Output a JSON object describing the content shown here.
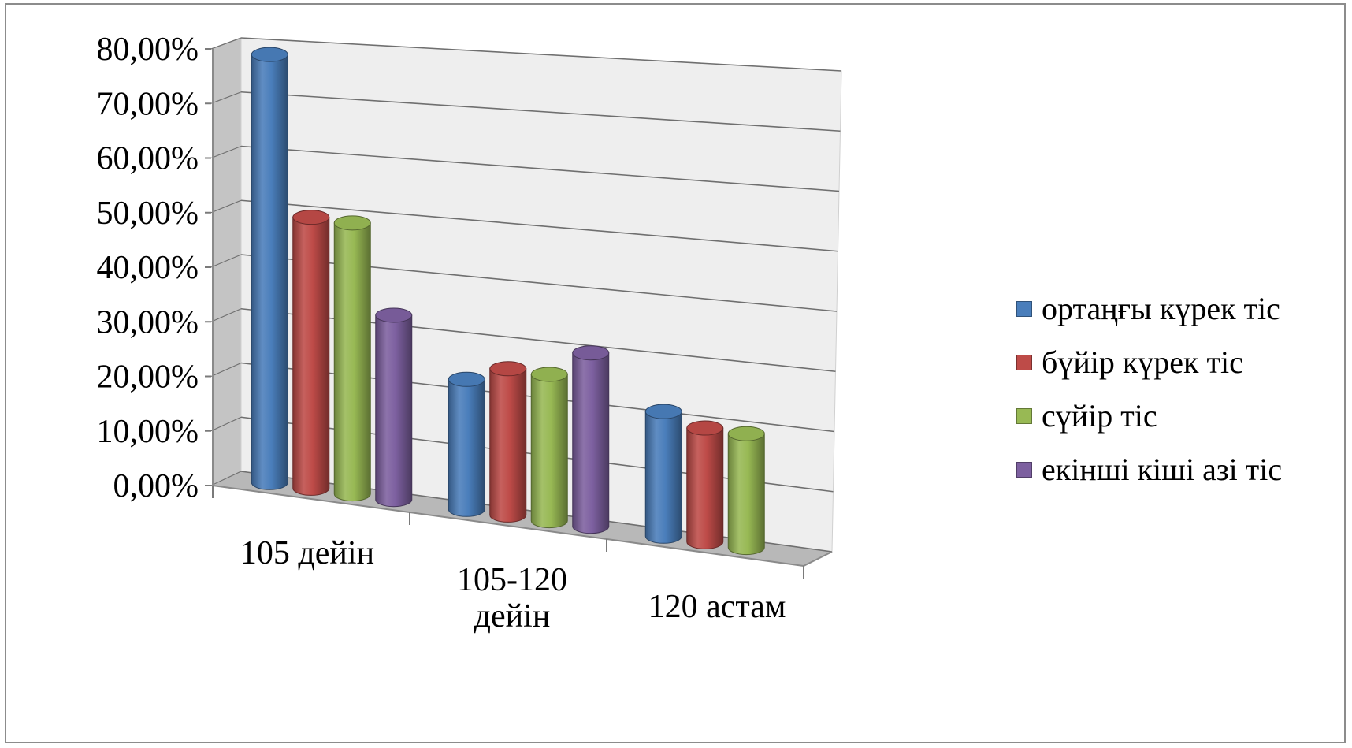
{
  "chart_data": {
    "type": "bar",
    "style": "3d-cylinder",
    "categories": [
      "105 дейін",
      "105-120 дейін",
      "120 астам"
    ],
    "category_label_lines": [
      [
        "105 дейін"
      ],
      [
        "105-120",
        "дейін"
      ],
      [
        "120 астам"
      ]
    ],
    "series": [
      {
        "name": "ортаңғы күрек тіс",
        "color": "#4a7ebb",
        "values": [
          0.79,
          0.24,
          0.23
        ]
      },
      {
        "name": "бүйір күрек тіс",
        "color": "#be4b48",
        "values": [
          0.5,
          0.27,
          0.21
        ]
      },
      {
        "name": "сүйір тіс",
        "color": "#98b954",
        "values": [
          0.5,
          0.27,
          0.21
        ]
      },
      {
        "name": "екінші кіші азі тіс",
        "color": "#7d60a0",
        "values": [
          0.34,
          0.32,
          null
        ]
      }
    ],
    "ylim": [
      0,
      0.8
    ],
    "yticks": [
      "0,00%",
      "10,00%",
      "20,00%",
      "30,00%",
      "40,00%",
      "50,00%",
      "60,00%",
      "70,00%",
      "80,00%"
    ],
    "grid": true,
    "legend_position": "right"
  }
}
